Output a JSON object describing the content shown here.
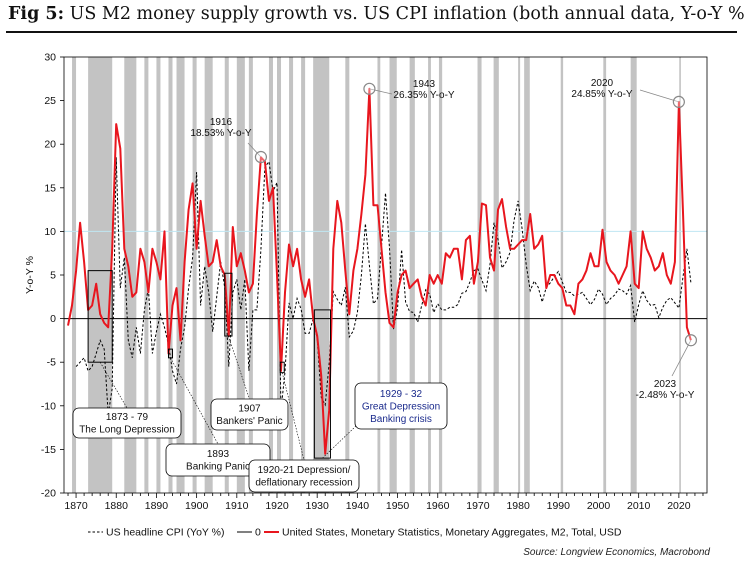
{
  "page": {
    "title_prefix": "Fig 5:",
    "title_rest": " US M2 money supply growth vs. US CPI inflation (both annual data, Y-o-Y %)",
    "source": "Source: Longview Economics, Macrobond"
  },
  "chart_data": {
    "type": "line",
    "title": "US M2 money supply growth vs. US CPI inflation (both annual data, Y-o-Y %)",
    "xlabel": "",
    "ylabel": "Y-o-Y %",
    "xlim": [
      1867,
      2027
    ],
    "ylim": [
      -20,
      30
    ],
    "x_ticks": [
      1870,
      1880,
      1890,
      1900,
      1910,
      1920,
      1930,
      1940,
      1950,
      1960,
      1970,
      1980,
      1990,
      2000,
      2010,
      2020
    ],
    "y_ticks": [
      -20,
      -15,
      -10,
      -5,
      0,
      5,
      10,
      15,
      20,
      25,
      30
    ],
    "grid": false,
    "reference_line_y": 10,
    "recession_shading": [
      [
        1869,
        1870
      ],
      [
        1873,
        1879
      ],
      [
        1882,
        1885
      ],
      [
        1887,
        1888
      ],
      [
        1890,
        1891
      ],
      [
        1893,
        1894
      ],
      [
        1895,
        1897
      ],
      [
        1899,
        1900
      ],
      [
        1902,
        1904
      ],
      [
        1907,
        1908
      ],
      [
        1910,
        1912
      ],
      [
        1913,
        1914
      ],
      [
        1918,
        1919
      ],
      [
        1920,
        1921
      ],
      [
        1923,
        1924
      ],
      [
        1926,
        1927
      ],
      [
        1929,
        1933
      ],
      [
        1937,
        1938
      ],
      [
        1945,
        1945.7
      ],
      [
        1948,
        1949.8
      ],
      [
        1953,
        1954.3
      ],
      [
        1957.6,
        1958.3
      ],
      [
        1960.3,
        1961.1
      ],
      [
        1969.9,
        1970.9
      ],
      [
        1973.9,
        1975.2
      ],
      [
        1980,
        1980.5
      ],
      [
        1981.5,
        1982.9
      ],
      [
        1990.6,
        1991.2
      ],
      [
        2001.2,
        2001.9
      ],
      [
        2008,
        2009.5
      ],
      [
        2020.1,
        2020.5
      ]
    ],
    "series": [
      {
        "name": "US headline CPI (YoY %)",
        "style": "dashed",
        "color": "#000000",
        "x": [
          1870,
          1871,
          1872,
          1873,
          1874,
          1875,
          1876,
          1877,
          1878,
          1879,
          1880,
          1881,
          1882,
          1883,
          1884,
          1885,
          1886,
          1887,
          1888,
          1889,
          1890,
          1891,
          1892,
          1893,
          1894,
          1895,
          1896,
          1897,
          1898,
          1899,
          1900,
          1901,
          1902,
          1903,
          1904,
          1905,
          1906,
          1907,
          1908,
          1909,
          1910,
          1911,
          1912,
          1913,
          1914,
          1915,
          1916,
          1917,
          1918,
          1919,
          1920,
          1921,
          1922,
          1923,
          1924,
          1925,
          1926,
          1927,
          1928,
          1929,
          1930,
          1931,
          1932,
          1933,
          1934,
          1935,
          1936,
          1937,
          1938,
          1939,
          1940,
          1941,
          1942,
          1943,
          1944,
          1945,
          1946,
          1947,
          1948,
          1949,
          1950,
          1951,
          1952,
          1953,
          1954,
          1955,
          1956,
          1957,
          1958,
          1959,
          1960,
          1961,
          1962,
          1963,
          1964,
          1965,
          1966,
          1967,
          1968,
          1969,
          1970,
          1971,
          1972,
          1973,
          1974,
          1975,
          1976,
          1977,
          1978,
          1979,
          1980,
          1981,
          1982,
          1983,
          1984,
          1985,
          1986,
          1987,
          1988,
          1989,
          1990,
          1991,
          1992,
          1993,
          1994,
          1995,
          1996,
          1997,
          1998,
          1999,
          2000,
          2001,
          2002,
          2003,
          2004,
          2005,
          2006,
          2007,
          2008,
          2009,
          2010,
          2011,
          2012,
          2013,
          2014,
          2015,
          2016,
          2017,
          2018,
          2019,
          2020,
          2021,
          2022,
          2023
        ],
        "values": [
          -5.5,
          -5.0,
          -4.5,
          -6.0,
          -5.5,
          -4.0,
          -2.5,
          -3.5,
          -11.0,
          -8.0,
          18.5,
          3.5,
          7.0,
          -2.5,
          -4.5,
          -1.0,
          -4.0,
          1.0,
          3.5,
          -4.0,
          -1.5,
          0.5,
          -1.0,
          -3.0,
          -6.0,
          -7.5,
          -3.5,
          -1.0,
          3.5,
          7.0,
          16.8,
          1.5,
          6.0,
          3.0,
          -1.5,
          2.5,
          6.5,
          3.5,
          -5.5,
          3.0,
          4.5,
          1.0,
          4.5,
          -6.0,
          1.0,
          1.0,
          7.9,
          17.4,
          18.0,
          14.6,
          15.6,
          -10.5,
          -6.1,
          1.8,
          0.0,
          2.3,
          1.1,
          -1.7,
          -1.7,
          0.0,
          -2.3,
          -9.0,
          -9.9,
          -5.1,
          3.1,
          2.2,
          1.5,
          3.6,
          -2.1,
          -1.4,
          0.7,
          5.0,
          10.9,
          6.1,
          1.7,
          2.3,
          8.3,
          14.4,
          8.1,
          -1.2,
          1.3,
          7.9,
          1.9,
          0.8,
          0.7,
          -0.4,
          1.5,
          3.3,
          2.8,
          0.7,
          1.7,
          1.0,
          1.0,
          1.3,
          1.3,
          1.6,
          2.9,
          3.1,
          4.2,
          5.5,
          5.7,
          4.4,
          3.2,
          6.2,
          11.0,
          9.1,
          5.8,
          6.5,
          7.6,
          11.3,
          13.5,
          10.3,
          6.2,
          3.2,
          4.3,
          3.6,
          1.9,
          3.6,
          4.1,
          4.8,
          5.4,
          4.2,
          3.0,
          3.0,
          2.6,
          2.8,
          3.0,
          2.3,
          1.6,
          2.2,
          3.4,
          2.8,
          1.6,
          2.3,
          2.7,
          3.4,
          3.2,
          2.8,
          3.8,
          -0.4,
          1.6,
          3.2,
          2.1,
          1.5,
          1.6,
          0.1,
          1.3,
          2.1,
          2.4,
          1.8,
          1.2,
          4.7,
          8.0,
          4.1
        ]
      },
      {
        "name": "0",
        "style": "solid",
        "color": "#000000",
        "x": [
          1867,
          2027
        ],
        "values": [
          0,
          0
        ]
      },
      {
        "name": "United States, Monetary Statistics, Monetary Aggregates, M2, Total, USD",
        "style": "solid",
        "color": "#e8161e",
        "x": [
          1868,
          1869,
          1870,
          1871,
          1872,
          1873,
          1874,
          1875,
          1876,
          1877,
          1878,
          1879,
          1880,
          1881,
          1882,
          1883,
          1884,
          1885,
          1886,
          1887,
          1888,
          1889,
          1890,
          1891,
          1892,
          1893,
          1894,
          1895,
          1896,
          1897,
          1898,
          1899,
          1900,
          1901,
          1902,
          1903,
          1904,
          1905,
          1906,
          1907,
          1908,
          1909,
          1910,
          1911,
          1912,
          1913,
          1914,
          1915,
          1916,
          1917,
          1918,
          1919,
          1920,
          1921,
          1922,
          1923,
          1924,
          1925,
          1926,
          1927,
          1928,
          1929,
          1930,
          1931,
          1932,
          1933,
          1934,
          1935,
          1936,
          1937,
          1938,
          1939,
          1940,
          1941,
          1942,
          1943,
          1944,
          1945,
          1946,
          1947,
          1948,
          1949,
          1950,
          1951,
          1952,
          1953,
          1954,
          1955,
          1956,
          1957,
          1958,
          1959,
          1960,
          1961,
          1962,
          1963,
          1964,
          1965,
          1966,
          1967,
          1968,
          1969,
          1970,
          1971,
          1972,
          1973,
          1974,
          1975,
          1976,
          1977,
          1978,
          1979,
          1980,
          1981,
          1982,
          1983,
          1984,
          1985,
          1986,
          1987,
          1988,
          1989,
          1990,
          1991,
          1992,
          1993,
          1994,
          1995,
          1996,
          1997,
          1998,
          1999,
          2000,
          2001,
          2002,
          2003,
          2004,
          2005,
          2006,
          2007,
          2008,
          2009,
          2010,
          2011,
          2012,
          2013,
          2014,
          2015,
          2016,
          2017,
          2018,
          2019,
          2020,
          2021,
          2022,
          2023
        ],
        "values": [
          -0.8,
          1.5,
          5.5,
          11.0,
          6.5,
          1.0,
          1.5,
          4.0,
          0.5,
          -0.5,
          -1.0,
          8.0,
          22.3,
          19.5,
          8.0,
          6.0,
          2.5,
          3.0,
          8.0,
          6.5,
          3.0,
          8.0,
          6.5,
          4.5,
          10.0,
          -4.0,
          1.5,
          3.5,
          -2.5,
          6.5,
          12.5,
          15.5,
          8.0,
          13.5,
          9.5,
          6.0,
          6.5,
          9.0,
          6.0,
          5.0,
          -2.0,
          10.5,
          6.0,
          7.5,
          5.5,
          3.0,
          4.0,
          12.0,
          18.5,
          18.0,
          13.5,
          15.0,
          5.0,
          -6.0,
          3.0,
          8.5,
          6.0,
          8.0,
          4.5,
          2.5,
          4.5,
          0.0,
          -2.0,
          -6.5,
          -15.5,
          -10.5,
          8.0,
          13.5,
          11.0,
          5.5,
          0.5,
          5.5,
          8.0,
          12.0,
          16.5,
          26.35,
          13.0,
          13.0,
          8.0,
          3.0,
          -0.5,
          -1.0,
          3.0,
          5.0,
          5.5,
          3.5,
          4.0,
          4.5,
          2.5,
          1.5,
          5.0,
          4.0,
          5.0,
          4.0,
          7.5,
          7.0,
          8.0,
          8.0,
          4.5,
          9.0,
          9.5,
          4.0,
          6.5,
          13.2,
          13.0,
          7.0,
          5.5,
          12.5,
          13.7,
          10.5,
          8.0,
          8.0,
          8.5,
          9.0,
          9.0,
          12.0,
          8.0,
          8.5,
          9.5,
          3.5,
          5.0,
          5.0,
          4.0,
          3.5,
          1.5,
          1.5,
          0.5,
          4.0,
          4.5,
          5.5,
          7.5,
          6.0,
          6.0,
          10.2,
          6.5,
          5.5,
          5.0,
          4.0,
          5.0,
          6.0,
          10.0,
          4.0,
          3.5,
          10.0,
          8.0,
          7.0,
          5.5,
          6.0,
          7.5,
          5.0,
          4.0,
          6.5,
          24.85,
          12.5,
          -1.0,
          -2.48
        ]
      }
    ],
    "legend": {
      "placement": "bottom",
      "entries": [
        "US headline CPI (YoY %)",
        "0",
        "United States, Monetary Statistics, Monetary Aggregates, M2, Total, USD"
      ]
    },
    "annotations": [
      {
        "id": "ann-1943",
        "lines": [
          "1943",
          "26.35% Y-o-Y"
        ],
        "x": 1943,
        "y": 26.35,
        "marker": "circle"
      },
      {
        "id": "ann-1916",
        "lines": [
          "1916",
          "18.53% Y-o-Y"
        ],
        "x": 1916,
        "y": 18.53,
        "marker": "circle"
      },
      {
        "id": "ann-2020",
        "lines": [
          "2020",
          "24.85% Y-o-Y"
        ],
        "x": 2020,
        "y": 24.85,
        "marker": "circle"
      },
      {
        "id": "ann-2023",
        "lines": [
          "2023",
          "-2.48% Y-o-Y"
        ],
        "x": 2023,
        "y": -2.48,
        "marker": "circle"
      }
    ],
    "callouts": [
      {
        "id": "box-1873",
        "lines": [
          "1873 - 79",
          "The Long Depression"
        ],
        "region": [
          1873,
          1879,
          -5,
          5.5
        ],
        "style": "plain"
      },
      {
        "id": "box-1893",
        "lines": [
          "1893",
          "Banking Panic"
        ],
        "region": [
          1893,
          1894,
          -4.5,
          -3.5
        ],
        "style": "plain"
      },
      {
        "id": "box-1907",
        "lines": [
          "1907",
          "Bankers' Panic"
        ],
        "region": [
          1907,
          1908.8,
          -2,
          5.2
        ],
        "style": "plain"
      },
      {
        "id": "box-1920",
        "lines": [
          "1920-21 Depression/",
          "deflationary recession"
        ],
        "region": [
          1920.8,
          1921.8,
          -6.2,
          -5
        ],
        "style": "plain"
      },
      {
        "id": "box-1929",
        "lines": [
          "1929 - 32",
          "Great Depression",
          "Banking crisis"
        ],
        "region": [
          1929.3,
          1933.3,
          -16,
          1
        ],
        "style": "blue"
      }
    ]
  }
}
